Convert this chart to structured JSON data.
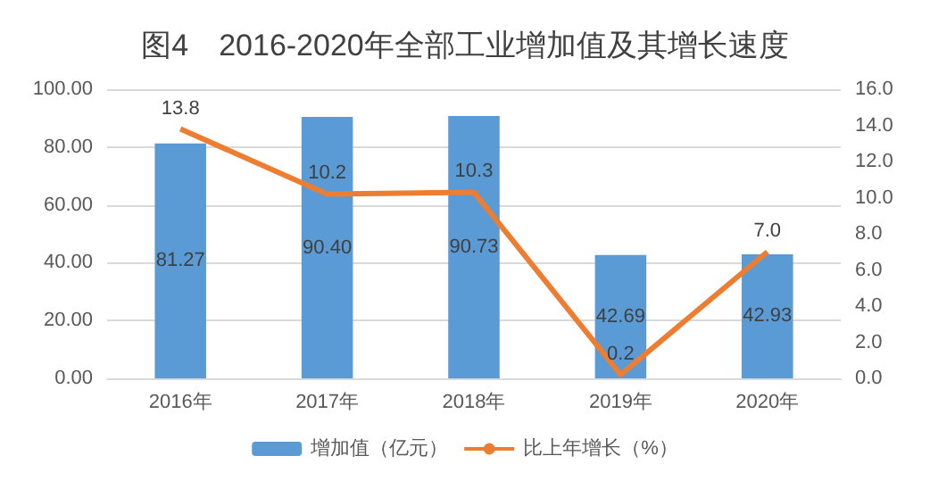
{
  "chart_data": {
    "type": "bar",
    "title": "图4　2016-2020年全部工业增加值及其增长速度",
    "categories": [
      "2016年",
      "2017年",
      "2018年",
      "2019年",
      "2020年"
    ],
    "series": [
      {
        "name": "增加值（亿元）",
        "color": "#5b9bd5",
        "values": [
          81.27,
          90.4,
          90.73,
          42.69,
          42.93
        ],
        "value_labels": [
          "81.27",
          "90.40",
          "90.73",
          "42.69",
          "42.93"
        ]
      },
      {
        "name": "比上年增长（%）",
        "type": "line",
        "axis": "y2",
        "color": "#ed7d31",
        "values": [
          13.8,
          10.2,
          10.3,
          0.2,
          7.0
        ],
        "value_labels": [
          "13.8",
          "10.2",
          "10.3",
          "0.2",
          "7.0"
        ]
      }
    ],
    "ylim": [
      0,
      100
    ],
    "yticks": [
      {
        "value": 0,
        "label": "0.00"
      },
      {
        "value": 20,
        "label": "20.00"
      },
      {
        "value": 40,
        "label": "40.00"
      },
      {
        "value": 60,
        "label": "60.00"
      },
      {
        "value": 80,
        "label": "80.00"
      },
      {
        "value": 100,
        "label": "100.00"
      }
    ],
    "y2lim": [
      0,
      16
    ],
    "y2ticks": [
      {
        "value": 0,
        "label": "0.0"
      },
      {
        "value": 2,
        "label": "2.0"
      },
      {
        "value": 4,
        "label": "4.0"
      },
      {
        "value": 6,
        "label": "6.0"
      },
      {
        "value": 8,
        "label": "8.0"
      },
      {
        "value": 10,
        "label": "10.0"
      },
      {
        "value": 12,
        "label": "12.0"
      },
      {
        "value": 14,
        "label": "14.0"
      },
      {
        "value": 16,
        "label": "16.0"
      }
    ],
    "grid": "y",
    "legend": "bottom",
    "marker": "none",
    "line_style": "solid"
  }
}
